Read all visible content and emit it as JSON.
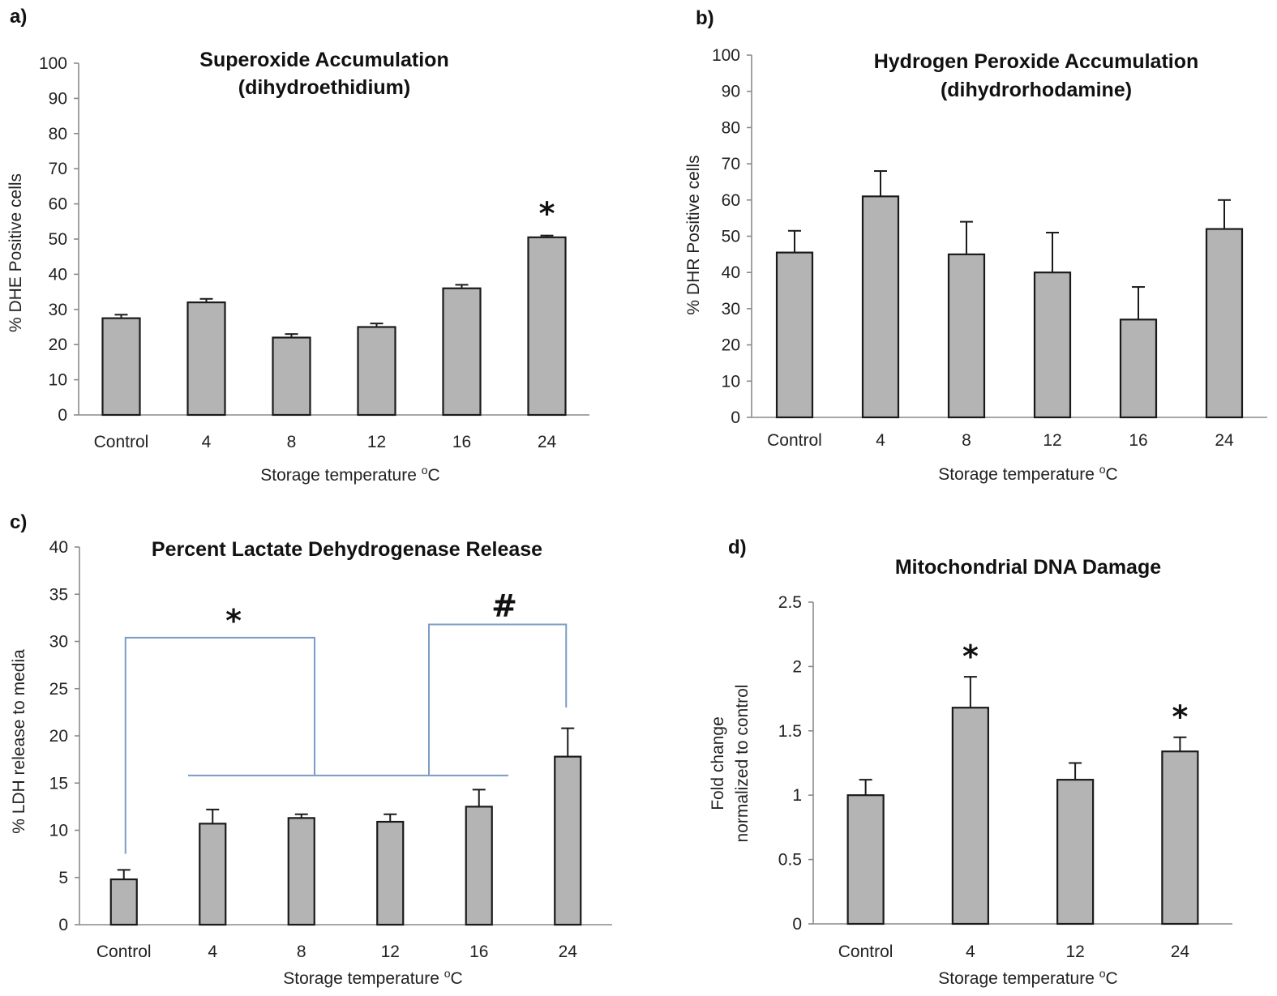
{
  "chart_data": [
    {
      "panel": "a)",
      "type": "bar",
      "title": [
        "Superoxide Accumulation",
        "(dihydroethidium)"
      ],
      "xlabel": "Storage temperature",
      "xlabel_unit": "C",
      "xlabel_sup": "o",
      "ylabel": "% DHE Positive cells",
      "ylim": [
        0,
        100
      ],
      "yticks": [
        "0",
        "10",
        "20",
        "30",
        "40",
        "50",
        "60",
        "70",
        "80",
        "90",
        "100"
      ],
      "categories": [
        "Control",
        "4",
        "8",
        "12",
        "16",
        "24"
      ],
      "values": [
        27.5,
        32,
        22,
        25,
        36,
        50.5
      ],
      "errors": [
        1,
        1,
        1,
        1,
        1,
        0.5
      ],
      "significance": [
        {
          "category": "24",
          "label": "*"
        }
      ],
      "brackets": []
    },
    {
      "panel": "b)",
      "type": "bar",
      "title": [
        "Hydrogen Peroxide  Accumulation",
        "(dihydrorhodamine)"
      ],
      "xlabel": "Storage temperature",
      "xlabel_unit": "C",
      "xlabel_sup": "o",
      "ylabel": "% DHR Positive cells",
      "ylim": [
        0,
        100
      ],
      "yticks": [
        "0",
        "10",
        "20",
        "30",
        "40",
        "50",
        "60",
        "70",
        "80",
        "90",
        "100"
      ],
      "categories": [
        "Control",
        "4",
        "8",
        "12",
        "16",
        "24"
      ],
      "values": [
        45.5,
        61,
        45,
        40,
        27,
        52
      ],
      "errors": [
        6,
        7,
        9,
        11,
        9,
        8
      ],
      "significance": [],
      "brackets": []
    },
    {
      "panel": "c)",
      "type": "bar",
      "title": [
        "Percent  Lactate Dehydrogenase Release"
      ],
      "xlabel": "Storage temperature",
      "xlabel_unit": "C",
      "xlabel_sup": "o",
      "ylabel": "% LDH release to media",
      "ylim": [
        0,
        40
      ],
      "yticks": [
        "0",
        "5",
        "10",
        "15",
        "20",
        "25",
        "30",
        "35",
        "40"
      ],
      "categories": [
        "Control",
        "4",
        "8",
        "12",
        "16",
        "24"
      ],
      "values": [
        4.8,
        10.7,
        11.3,
        10.9,
        12.5,
        17.8
      ],
      "errors": [
        1,
        1.5,
        0.4,
        0.8,
        1.8,
        3
      ],
      "significance": [],
      "brackets": [
        {
          "label": "*",
          "from": "Control",
          "to": "4-16"
        },
        {
          "label": "#",
          "from": "4-16",
          "to": "24"
        }
      ]
    },
    {
      "panel": "d)",
      "type": "bar",
      "title": [
        "Mitochondrial DNA Damage"
      ],
      "xlabel": "Storage temperature",
      "xlabel_unit": "C",
      "xlabel_sup": "o",
      "ylabel": [
        "Fold change",
        "normalized to control"
      ],
      "ylim": [
        0,
        2.5
      ],
      "yticks": [
        "0",
        "0.5",
        "1",
        "1.5",
        "2",
        "2.5"
      ],
      "categories": [
        "Control",
        "4",
        "12",
        "24"
      ],
      "values": [
        1.0,
        1.68,
        1.12,
        1.34
      ],
      "errors": [
        0.12,
        0.24,
        0.13,
        0.11
      ],
      "significance": [
        {
          "category": "4",
          "label": "*"
        },
        {
          "category": "24",
          "label": "*"
        }
      ],
      "brackets": []
    }
  ]
}
